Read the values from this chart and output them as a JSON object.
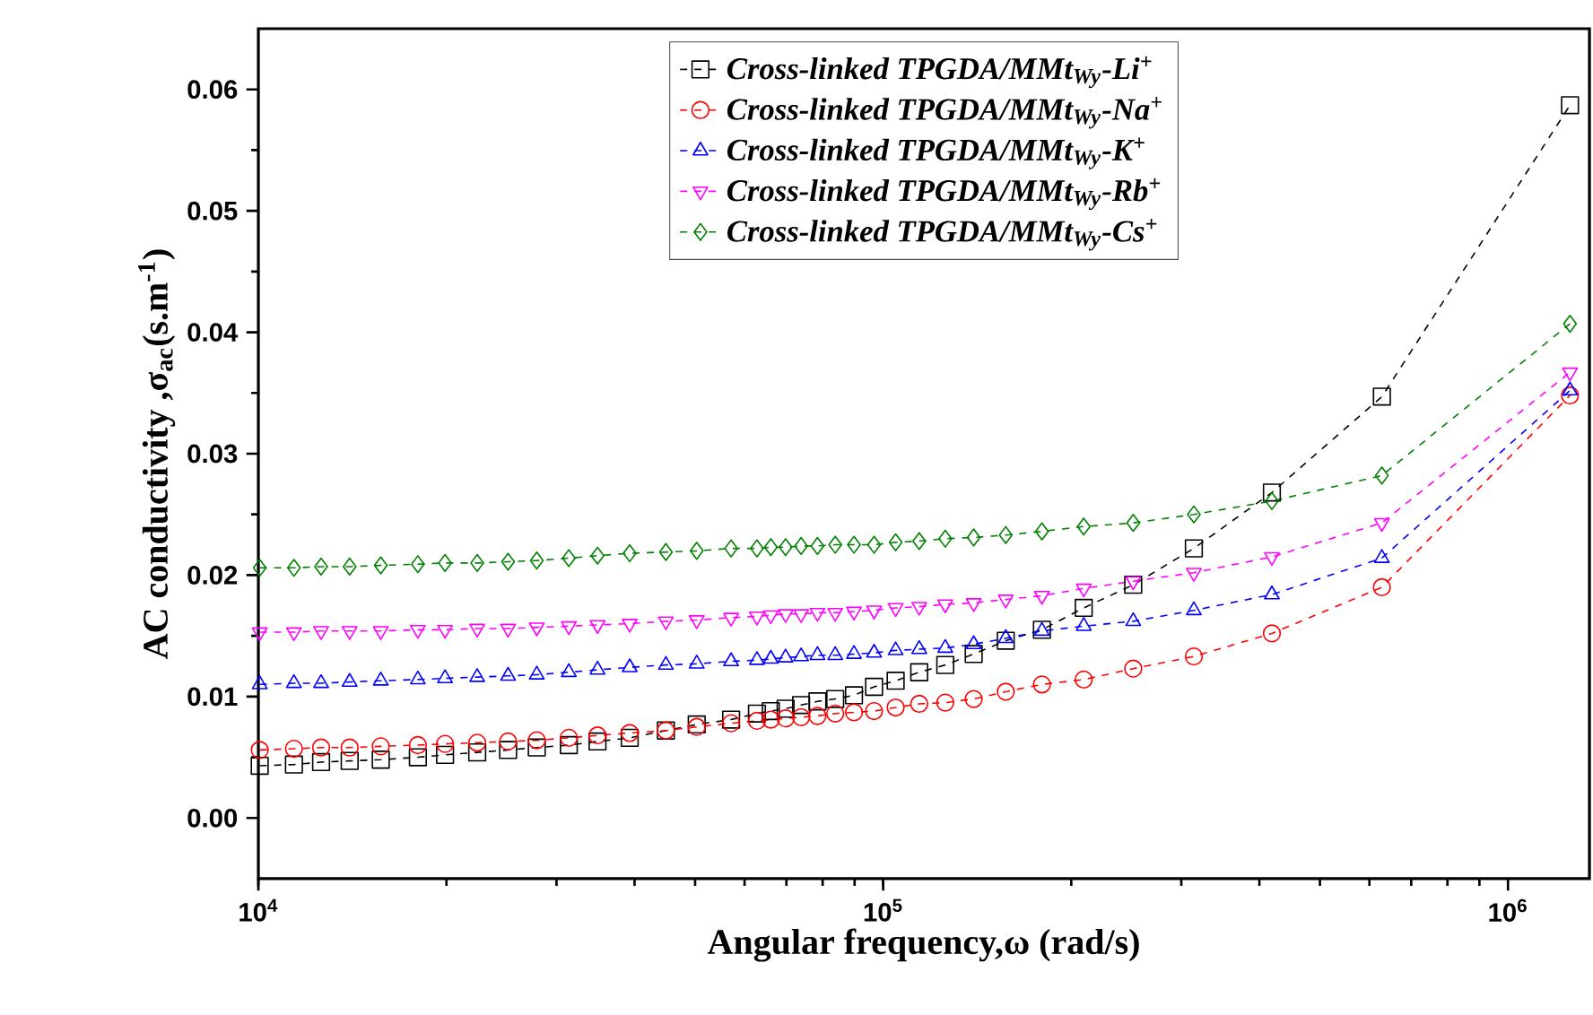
{
  "chart_data": {
    "type": "line",
    "xlabel": "Angular frequency,ω (rad/s)",
    "ylabel": "AC conductivity ,σ$_{ac}$(s.m$^{-1}$)",
    "x": [
      10050,
      11400,
      12600,
      14000,
      15700,
      18000,
      19900,
      22400,
      25100,
      27900,
      31400,
      34900,
      39300,
      44900,
      50300,
      57100,
      62800,
      66100,
      69800,
      73900,
      78500,
      83800,
      89800,
      96700,
      104700,
      114200,
      125700,
      139600,
      157100,
      179500,
      209400,
      251300,
      314200,
      418900,
      628300,
      1256600
    ],
    "series": [
      {
        "name": "Cross-linked  TPGDA/MMt$_{Wy}$-Li$^{+}$",
        "color": "#000000",
        "marker": "square",
        "values": [
          0.0043,
          0.0044,
          0.0046,
          0.0047,
          0.0048,
          0.005,
          0.0052,
          0.0054,
          0.0056,
          0.0058,
          0.006,
          0.0063,
          0.0066,
          0.0072,
          0.0077,
          0.0081,
          0.0086,
          0.0088,
          0.009,
          0.0093,
          0.0096,
          0.0098,
          0.0101,
          0.0108,
          0.0113,
          0.012,
          0.0126,
          0.0135,
          0.0146,
          0.0155,
          0.0173,
          0.0192,
          0.0222,
          0.0268,
          0.0347,
          0.0587
        ]
      },
      {
        "name": "Cross-linked  TPGDA/MMt$_{Wy}$-Na$^{+}$",
        "color": "#ff0000",
        "marker": "circle",
        "values": [
          0.0056,
          0.0057,
          0.0058,
          0.0058,
          0.0059,
          0.006,
          0.0061,
          0.0062,
          0.0063,
          0.0064,
          0.0066,
          0.0068,
          0.007,
          0.0072,
          0.0075,
          0.0078,
          0.008,
          0.0081,
          0.0082,
          0.0083,
          0.0084,
          0.0086,
          0.0087,
          0.0088,
          0.0091,
          0.0094,
          0.0095,
          0.0098,
          0.0104,
          0.011,
          0.0114,
          0.0123,
          0.0133,
          0.0152,
          0.019,
          0.0348
        ]
      },
      {
        "name": "Cross-linked  TPGDA/MMt$_{Wy}$-K$^{+}$",
        "color": "#0000ff",
        "marker": "triangle",
        "values": [
          0.011,
          0.0111,
          0.0111,
          0.0112,
          0.0113,
          0.0114,
          0.0115,
          0.0116,
          0.0117,
          0.0118,
          0.012,
          0.0122,
          0.0124,
          0.0126,
          0.0127,
          0.0129,
          0.013,
          0.0131,
          0.0132,
          0.0133,
          0.0134,
          0.0134,
          0.0135,
          0.0136,
          0.0138,
          0.0139,
          0.014,
          0.0143,
          0.0148,
          0.0154,
          0.0158,
          0.0162,
          0.0171,
          0.0184,
          0.0214,
          0.0352
        ]
      },
      {
        "name": "Cross-linked TPGDA/MMt$_{Wy}$-Rb$^{+}$",
        "color": "#ff00ff",
        "marker": "triangle-down",
        "values": [
          0.0153,
          0.0153,
          0.0154,
          0.0154,
          0.0154,
          0.0155,
          0.0155,
          0.0156,
          0.0156,
          0.0157,
          0.0158,
          0.0159,
          0.016,
          0.0162,
          0.0163,
          0.0165,
          0.0166,
          0.0167,
          0.0168,
          0.0168,
          0.0169,
          0.0169,
          0.017,
          0.0171,
          0.0173,
          0.0174,
          0.0176,
          0.0177,
          0.018,
          0.0183,
          0.0189,
          0.0195,
          0.0202,
          0.0215,
          0.0243,
          0.0367
        ]
      },
      {
        "name": "Cross-linked  TPGDA/MMt$_{Wy}$-Cs$^{+}$",
        "color": "#008000",
        "marker": "diamond",
        "values": [
          0.0206,
          0.0206,
          0.0207,
          0.0207,
          0.0208,
          0.0209,
          0.021,
          0.021,
          0.0211,
          0.0212,
          0.0214,
          0.0216,
          0.0218,
          0.0219,
          0.022,
          0.0222,
          0.0222,
          0.0223,
          0.0223,
          0.0224,
          0.0224,
          0.0225,
          0.0225,
          0.0225,
          0.0227,
          0.0228,
          0.023,
          0.0231,
          0.0233,
          0.0236,
          0.024,
          0.0243,
          0.025,
          0.0261,
          0.0282,
          0.0407
        ]
      }
    ],
    "log": "x",
    "line_style": "dashed",
    "legend": "top",
    "xlim": [
      10000,
      1350000
    ],
    "xticks": [
      {
        "value": 10000,
        "label": "10$^{4}$"
      },
      {
        "value": 100000,
        "label": "10$^{5}$"
      },
      {
        "value": 1000000,
        "label": "10$^{6}$"
      }
    ],
    "ylim": [
      -0.005,
      0.065
    ],
    "yticks": [
      {
        "value": 0,
        "label": "0.00"
      },
      {
        "value": 0.01,
        "label": "0.01"
      },
      {
        "value": 0.02,
        "label": "0.02"
      },
      {
        "value": 0.03,
        "label": "0.03"
      },
      {
        "value": 0.04,
        "label": "0.04"
      },
      {
        "value": 0.05,
        "label": "0.05"
      },
      {
        "value": 0.06,
        "label": "0.06"
      }
    ]
  }
}
